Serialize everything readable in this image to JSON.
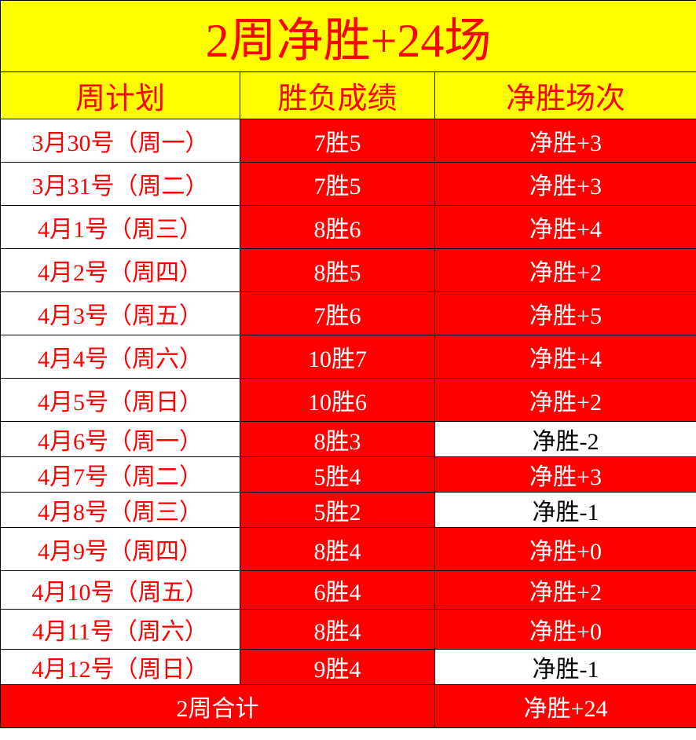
{
  "title": "2周净胜+24场",
  "headers": [
    "周计划",
    "胜负成绩",
    "净胜场次"
  ],
  "rows": [
    {
      "date": "3月30号（周一）",
      "record": "7胜5",
      "net": "净胜+3",
      "negative": false
    },
    {
      "date": "3月31号（周二）",
      "record": "7胜5",
      "net": "净胜+3",
      "negative": false
    },
    {
      "date": "4月1号（周三）",
      "record": "8胜6",
      "net": "净胜+4",
      "negative": false
    },
    {
      "date": "4月2号（周四）",
      "record": "8胜5",
      "net": "净胜+2",
      "negative": false
    },
    {
      "date": "4月3号（周五）",
      "record": "7胜6",
      "net": "净胜+5",
      "negative": false
    },
    {
      "date": "4月4号（周六）",
      "record": "10胜7",
      "net": "净胜+4",
      "negative": false
    },
    {
      "date": "4月5号（周日）",
      "record": "10胜6",
      "net": "净胜+2",
      "negative": false
    },
    {
      "date": "4月6号（周一）",
      "record": "8胜3",
      "net": "净胜-2",
      "negative": true
    },
    {
      "date": "4月7号（周二）",
      "record": "5胜4",
      "net": "净胜+3",
      "negative": false
    },
    {
      "date": "4月8号（周三）",
      "record": "5胜2",
      "net": "净胜-1",
      "negative": true
    },
    {
      "date": "4月9号（周四）",
      "record": "8胜4",
      "net": "净胜+0",
      "negative": false
    },
    {
      "date": "4月10号（周五）",
      "record": "6胜4",
      "net": "净胜+2",
      "negative": false
    },
    {
      "date": "4月11号（周六）",
      "record": "8胜4",
      "net": "净胜+0",
      "negative": false
    },
    {
      "date": "4月12号（周日）",
      "record": "9胜4",
      "net": "净胜-1",
      "negative": true
    }
  ],
  "total": {
    "label": "2周合计",
    "net": "净胜+24"
  },
  "colors": {
    "header_bg": "#ffff00",
    "accent": "#ff0000",
    "negative_bg": "#ffffff"
  }
}
